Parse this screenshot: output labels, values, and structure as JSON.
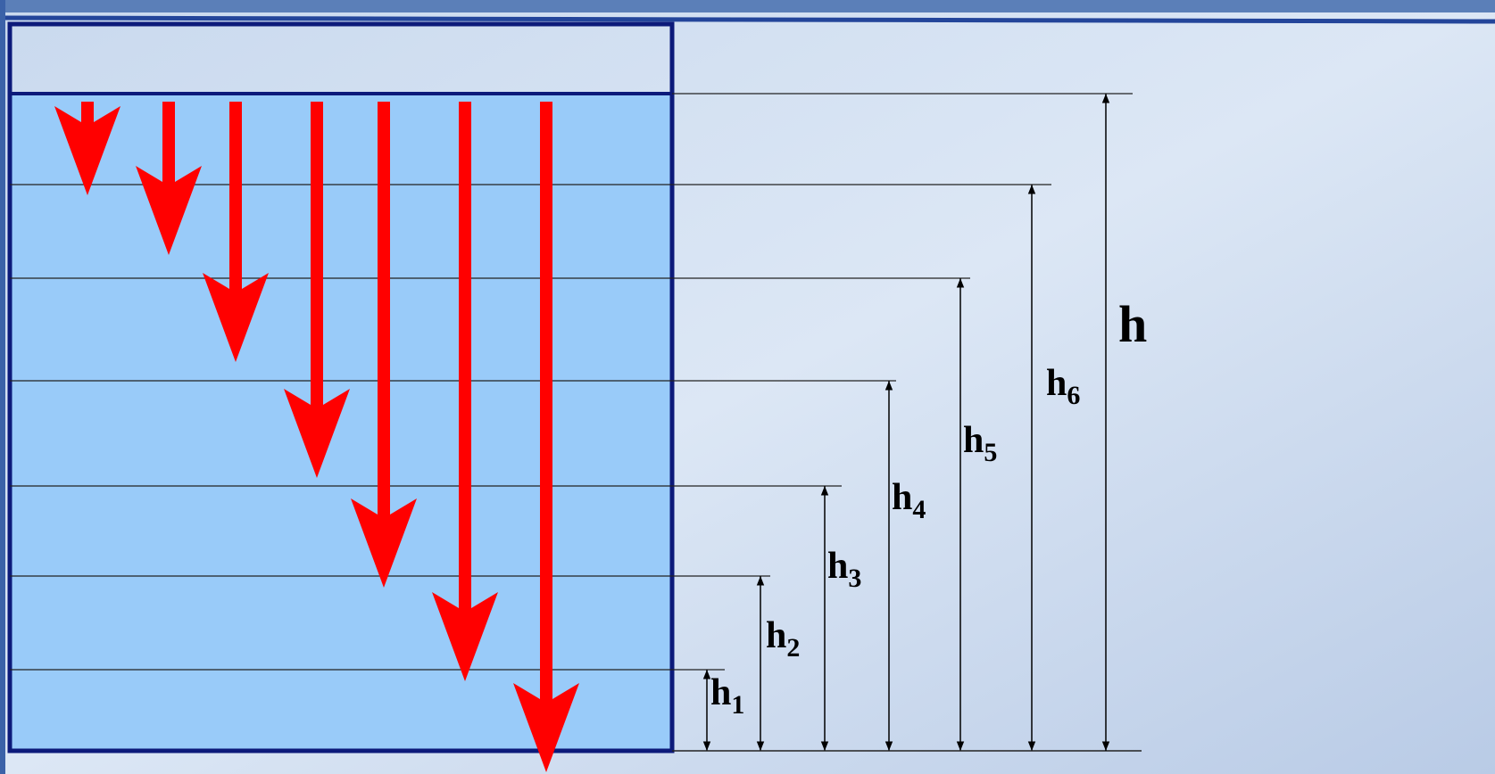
{
  "total_depth": {
    "letter": "h"
  },
  "depths": [
    {
      "letter": "h",
      "index": "1"
    },
    {
      "letter": "h",
      "index": "2"
    },
    {
      "letter": "h",
      "index": "3"
    },
    {
      "letter": "h",
      "index": "4"
    },
    {
      "letter": "h",
      "index": "5"
    },
    {
      "letter": "h",
      "index": "6"
    }
  ]
}
